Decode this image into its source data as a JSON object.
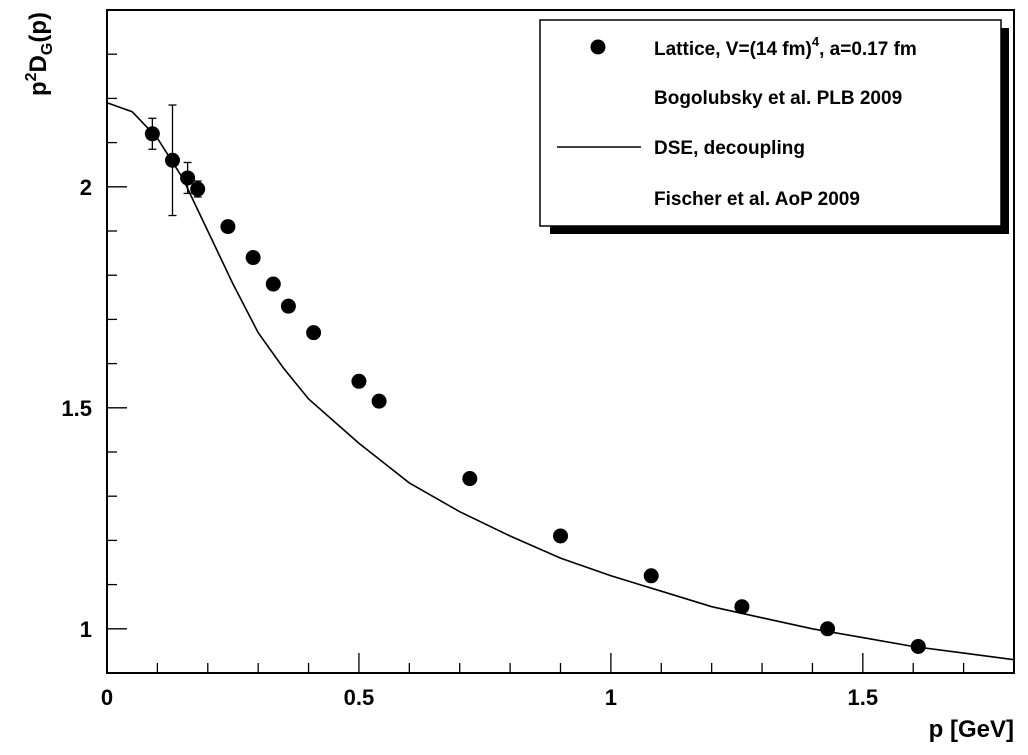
{
  "chart_data": {
    "type": "scatter",
    "xlabel": "p [GeV]",
    "ylabel": {
      "base": "p",
      "sup": "2",
      "mid": "D",
      "sub": "G",
      "tail": "(p)"
    },
    "xlim": [
      0,
      1.8
    ],
    "ylim": [
      0.9,
      2.4
    ],
    "x_ticks": [
      {
        "v": 0,
        "label": "0"
      },
      {
        "v": 0.5,
        "label": "0.5"
      },
      {
        "v": 1,
        "label": "1"
      },
      {
        "v": 1.5,
        "label": "1.5"
      }
    ],
    "y_ticks": [
      {
        "v": 1,
        "label": "1"
      },
      {
        "v": 1.5,
        "label": "1.5"
      },
      {
        "v": 2,
        "label": "2"
      }
    ],
    "series": [
      {
        "name": "Lattice, V=(14 fm)⁴, a=0.17 fm",
        "kind": "points",
        "points": [
          {
            "x": 0.09,
            "y": 2.12,
            "err": 0.035
          },
          {
            "x": 0.13,
            "y": 2.06,
            "err": 0.125
          },
          {
            "x": 0.16,
            "y": 2.02,
            "err": 0.035
          },
          {
            "x": 0.18,
            "y": 1.995,
            "err": 0.018
          },
          {
            "x": 0.24,
            "y": 1.91
          },
          {
            "x": 0.29,
            "y": 1.84
          },
          {
            "x": 0.33,
            "y": 1.78
          },
          {
            "x": 0.36,
            "y": 1.73
          },
          {
            "x": 0.41,
            "y": 1.67
          },
          {
            "x": 0.5,
            "y": 1.56
          },
          {
            "x": 0.54,
            "y": 1.515
          },
          {
            "x": 0.72,
            "y": 1.34
          },
          {
            "x": 0.9,
            "y": 1.21
          },
          {
            "x": 1.08,
            "y": 1.12
          },
          {
            "x": 1.26,
            "y": 1.05
          },
          {
            "x": 1.43,
            "y": 1.0
          },
          {
            "x": 1.61,
            "y": 0.96
          }
        ]
      },
      {
        "name": "DSE, decoupling",
        "kind": "line",
        "points": [
          {
            "x": 0.0,
            "y": 2.19
          },
          {
            "x": 0.05,
            "y": 2.17
          },
          {
            "x": 0.1,
            "y": 2.11
          },
          {
            "x": 0.15,
            "y": 2.02
          },
          {
            "x": 0.2,
            "y": 1.9
          },
          {
            "x": 0.25,
            "y": 1.78
          },
          {
            "x": 0.3,
            "y": 1.67
          },
          {
            "x": 0.35,
            "y": 1.59
          },
          {
            "x": 0.4,
            "y": 1.52
          },
          {
            "x": 0.5,
            "y": 1.42
          },
          {
            "x": 0.6,
            "y": 1.33
          },
          {
            "x": 0.7,
            "y": 1.265
          },
          {
            "x": 0.8,
            "y": 1.21
          },
          {
            "x": 0.9,
            "y": 1.16
          },
          {
            "x": 1.0,
            "y": 1.12
          },
          {
            "x": 1.1,
            "y": 1.085
          },
          {
            "x": 1.2,
            "y": 1.05
          },
          {
            "x": 1.3,
            "y": 1.025
          },
          {
            "x": 1.4,
            "y": 1.0
          },
          {
            "x": 1.5,
            "y": 0.98
          },
          {
            "x": 1.6,
            "y": 0.96
          },
          {
            "x": 1.7,
            "y": 0.945
          },
          {
            "x": 1.8,
            "y": 0.93
          }
        ]
      }
    ],
    "legend": {
      "placement": "top-right",
      "entries": [
        {
          "marker": "point",
          "label": "Lattice, V=(14 fm)",
          "sup": "4",
          "tail": ", a=0.17 fm"
        },
        {
          "marker": "none",
          "label": "Bogolubsky et al. PLB 2009"
        },
        {
          "marker": "line",
          "label": "DSE, decoupling"
        },
        {
          "marker": "none",
          "label": "Fischer et al. AoP 2009"
        }
      ]
    },
    "grid": false
  }
}
